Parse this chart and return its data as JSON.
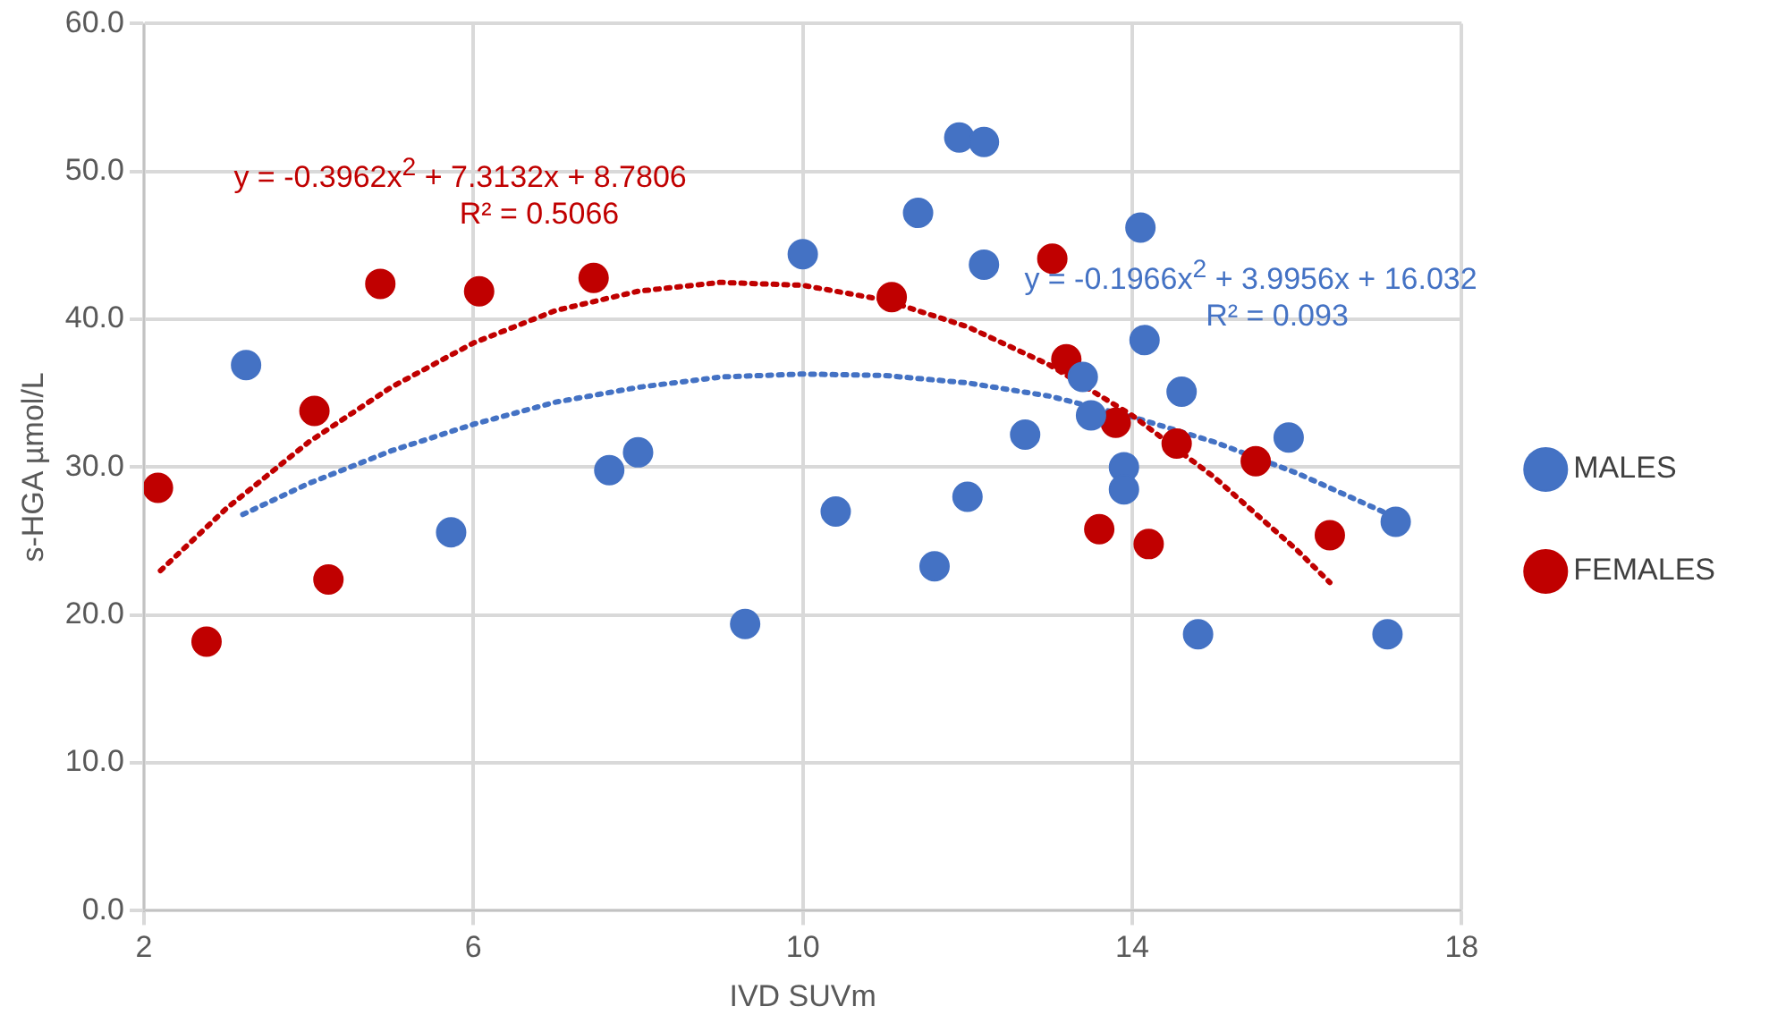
{
  "chart_data": {
    "type": "scatter",
    "xlabel": "IVD SUVm",
    "ylabel": "s-HGA µmol/L",
    "xlim": [
      2,
      18
    ],
    "xticks": [
      2,
      6,
      10,
      14,
      18
    ],
    "ylim": [
      0,
      60
    ],
    "yticks": [
      {
        "value": 0,
        "label": "0.0"
      },
      {
        "value": 10,
        "label": "10.0"
      },
      {
        "value": 20,
        "label": "20.0"
      },
      {
        "value": 30,
        "label": "30.0"
      },
      {
        "value": 40,
        "label": "40.0"
      },
      {
        "value": 50,
        "label": "50.0"
      },
      {
        "value": 60,
        "label": "60.0"
      }
    ],
    "grid": true,
    "legend": "right",
    "marker": "circle",
    "series": [
      {
        "name": "MALES",
        "color": "#4472c4",
        "x": [
          3.24,
          5.73,
          7.65,
          8.0,
          9.3,
          10.0,
          10.4,
          11.4,
          11.6,
          11.9,
          12.2,
          12.0,
          12.2,
          12.7,
          13.4,
          13.5,
          13.9,
          13.9,
          14.1,
          14.15,
          14.6,
          14.8,
          15.9,
          17.2,
          17.1
        ],
        "values": [
          36.9,
          25.6,
          29.8,
          31.0,
          19.4,
          44.4,
          27.0,
          47.2,
          23.3,
          52.3,
          52.0,
          28.0,
          43.7,
          32.2,
          36.1,
          33.5,
          30.0,
          28.5,
          46.2,
          38.6,
          35.1,
          18.7,
          32.0,
          26.3,
          18.7
        ]
      },
      {
        "name": "FEMALES",
        "color": "#c00000",
        "x": [
          2.17,
          2.76,
          4.07,
          4.24,
          4.87,
          6.07,
          7.46,
          11.08,
          13.03,
          13.2,
          13.8,
          13.6,
          14.2,
          14.54,
          15.5,
          16.4
        ],
        "values": [
          28.6,
          18.2,
          33.8,
          22.4,
          42.4,
          41.9,
          42.8,
          41.5,
          44.1,
          37.3,
          33.0,
          25.8,
          24.8,
          31.6,
          30.4,
          25.4
        ]
      },
      {
        "type": "line",
        "marker": "none",
        "line_style": "dotted",
        "color": "#c00000",
        "x": [
          2.2,
          3,
          4,
          5,
          6,
          7,
          8,
          9,
          10,
          11,
          12,
          13,
          14,
          15,
          16,
          16.4
        ],
        "values": [
          23.0,
          27.2,
          31.7,
          35.4,
          38.4,
          40.6,
          41.9,
          42.5,
          42.3,
          41.3,
          39.5,
          36.9,
          33.5,
          29.3,
          24.4,
          22.2
        ]
      },
      {
        "type": "line",
        "marker": "none",
        "line_style": "dotted",
        "color": "#4472c4",
        "x": [
          3.2,
          4,
          5,
          6,
          7,
          8,
          9,
          10,
          11,
          12,
          13,
          14,
          15,
          16,
          17.2
        ],
        "values": [
          26.8,
          28.9,
          31.1,
          32.9,
          34.4,
          35.4,
          36.1,
          36.3,
          36.2,
          35.7,
          34.8,
          33.4,
          31.7,
          29.6,
          26.6
        ]
      }
    ],
    "annotations": [
      "y = -0.3962x$^{2}$ + 7.3132x + 8.7806",
      "R² = 0.5066",
      "y = -0.1966x$^{2}$ + 3.9956x + 16.032",
      "R² = 0.093"
    ]
  }
}
